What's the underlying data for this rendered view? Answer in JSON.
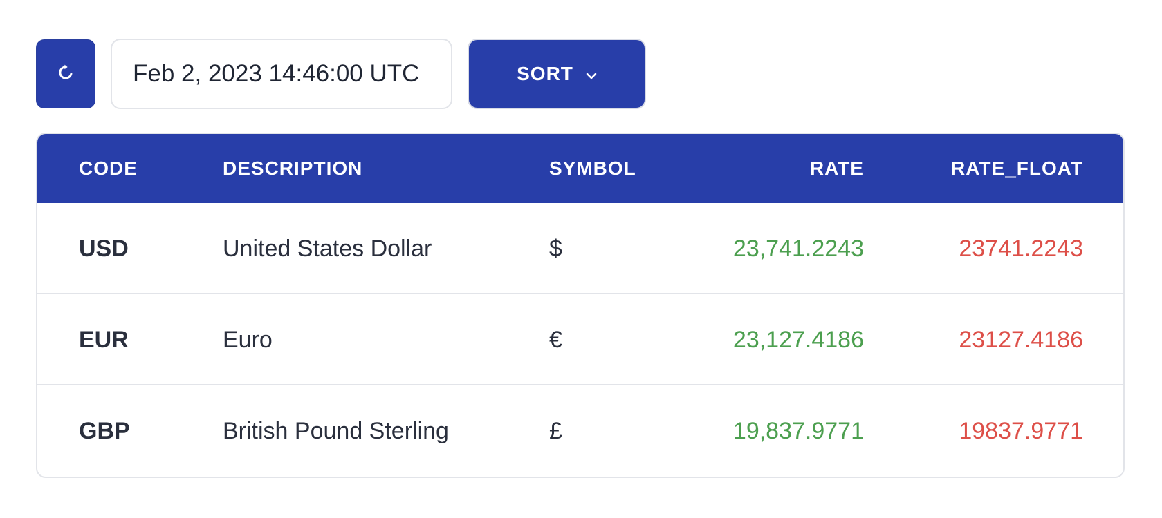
{
  "toolbar": {
    "refresh_icon": "refresh-icon",
    "timestamp": "Feb 2, 2023 14:46:00 UTC",
    "sort_label": "SORT",
    "sort_icon": "chevron-down-icon"
  },
  "colors": {
    "primary": "#283ea9",
    "rate_positive": "#4c9f4f",
    "rate_float": "#dd4f48",
    "border": "#e2e4e9"
  },
  "table": {
    "headers": {
      "code": "CODE",
      "description": "DESCRIPTION",
      "symbol": "SYMBOL",
      "rate": "RATE",
      "rate_float": "RATE_FLOAT"
    },
    "rows": [
      {
        "code": "USD",
        "description": "United States Dollar",
        "symbol": "$",
        "rate": "23,741.2243",
        "rate_float": "23741.2243"
      },
      {
        "code": "EUR",
        "description": "Euro",
        "symbol": "€",
        "rate": "23,127.4186",
        "rate_float": "23127.4186"
      },
      {
        "code": "GBP",
        "description": "British Pound Sterling",
        "symbol": "£",
        "rate": "19,837.9771",
        "rate_float": "19837.9771"
      }
    ]
  }
}
